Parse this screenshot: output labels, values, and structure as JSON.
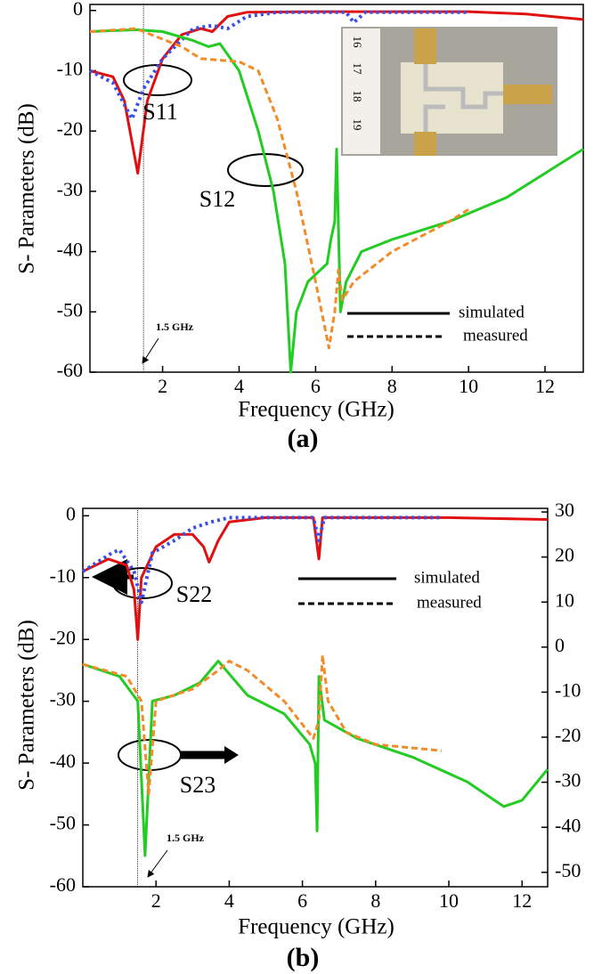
{
  "chart_data": [
    {
      "type": "line",
      "title": "(a)",
      "xlabel": "Frequency (GHz)",
      "ylabel": "S- Parameters (dB)",
      "xlim": [
        0.1,
        13
      ],
      "ylim": [
        -60,
        1
      ],
      "xticks": [
        2,
        4,
        6,
        8,
        10,
        12
      ],
      "yticks": [
        0,
        -10,
        -20,
        -30,
        -40,
        -50,
        -60
      ],
      "grid": false,
      "vline": {
        "value": 1.5,
        "label": "1.5 GHz"
      },
      "annotations": [
        "S11",
        "S12"
      ],
      "legend": [
        {
          "label": "simulated",
          "style": "solid"
        },
        {
          "label": "measured",
          "style": "dashed"
        }
      ],
      "inset_ruler_labels": [
        "16",
        "17",
        "18",
        "19"
      ],
      "series": [
        {
          "color": "#e01010",
          "style": "solid",
          "x": [
            0.1,
            0.7,
            1.0,
            1.35,
            1.6,
            2,
            2.5,
            3,
            3.3,
            3.7,
            4.2,
            6,
            10,
            11.5,
            13
          ],
          "values": [
            -10,
            -11,
            -15,
            -27,
            -15,
            -8,
            -4,
            -3,
            -3.5,
            -1,
            -0.3,
            -0.2,
            -0.2,
            -0.6,
            -1.5
          ]
        },
        {
          "color": "#3a4fe6",
          "style": "dotted",
          "x": [
            0.1,
            0.7,
            1.2,
            1.5,
            2,
            2.8,
            3.3,
            3.7,
            4.2,
            5,
            6.8,
            7.0,
            7.3,
            10
          ],
          "values": [
            -10,
            -12,
            -18,
            -13,
            -8,
            -3,
            -2.5,
            -3,
            -1,
            -0.3,
            -0.3,
            -2,
            -0.3,
            -0.3
          ]
        },
        {
          "color": "#22cc22",
          "style": "solid",
          "x": [
            0.1,
            1.3,
            2,
            2.8,
            3.2,
            3.5,
            4,
            4.5,
            4.9,
            5.2,
            5.35,
            5.5,
            5.8,
            6.3,
            6.4,
            6.5,
            6.55,
            6.65,
            6.8,
            7.2,
            8,
            9.5,
            11,
            12,
            13
          ],
          "values": [
            -3.5,
            -3.2,
            -3.5,
            -5,
            -6,
            -5.5,
            -10,
            -20,
            -30,
            -42,
            -60,
            -50,
            -45,
            -42,
            -38,
            -35,
            -23,
            -50,
            -45,
            -40,
            -38,
            -35,
            -31,
            -27,
            -23
          ]
        },
        {
          "color": "#f28c28",
          "style": "dashed",
          "x": [
            0.1,
            1.3,
            2.5,
            3,
            4,
            4.5,
            5,
            5.5,
            6,
            6.35,
            6.5,
            6.6,
            6.7,
            7,
            8,
            9.5,
            10
          ],
          "values": [
            -3.5,
            -3,
            -6,
            -8,
            -8.5,
            -10,
            -18,
            -30,
            -45,
            -56,
            -50,
            -43,
            -48,
            -45,
            -40,
            -35,
            -33
          ]
        }
      ]
    },
    {
      "type": "line",
      "title": "(b)",
      "xlabel": "Frequency (GHz)",
      "ylabel": "S- Parameters (dB)",
      "xlim": [
        0,
        12.7
      ],
      "ylim": [
        -60,
        1.2
      ],
      "y2lim": [
        -53.2,
        30.8
      ],
      "xticks": [
        2,
        4,
        6,
        8,
        10,
        12
      ],
      "yticks": [
        0,
        -10,
        -20,
        -30,
        -40,
        -50,
        -60
      ],
      "y2ticks": [
        30,
        20,
        10,
        0,
        -10,
        -20,
        -30,
        -40,
        -50
      ],
      "grid": false,
      "vline": {
        "value": 1.5,
        "label": "1.5 GHz"
      },
      "annotations": [
        "S22",
        "S23"
      ],
      "legend": [
        {
          "label": "simulated",
          "style": "solid"
        },
        {
          "label": "measured",
          "style": "dashed"
        }
      ],
      "series": [
        {
          "color": "#e01010",
          "style": "solid",
          "x": [
            0,
            0.7,
            1.2,
            1.4,
            1.5,
            1.6,
            2,
            2.5,
            3,
            3.3,
            3.45,
            3.7,
            4,
            5,
            6.3,
            6.45,
            6.55,
            10,
            12.7
          ],
          "values": [
            -9,
            -7,
            -8,
            -12,
            -20,
            -10,
            -5,
            -3,
            -3,
            -5,
            -7.5,
            -4,
            -1,
            -0.3,
            -0.3,
            -7,
            -0.3,
            -0.3,
            -0.6
          ]
        },
        {
          "color": "#3a4fe6",
          "style": "dotted",
          "x": [
            0,
            0.8,
            1.0,
            1.4,
            1.6,
            1.9,
            2.5,
            3,
            3.5,
            4,
            6.3,
            6.45,
            6.6,
            9.8
          ],
          "values": [
            -9,
            -6,
            -5.5,
            -9,
            -14,
            -6,
            -4,
            -2,
            -1,
            -0.3,
            -0.3,
            -4,
            -0.3,
            -0.3
          ]
        },
        {
          "color": "#22cc22",
          "style": "solid",
          "axis": "y2",
          "x": [
            0,
            1.0,
            1.5,
            1.7,
            1.9,
            2.5,
            3.2,
            3.7,
            4.5,
            5.5,
            6.2,
            6.35,
            6.4,
            6.45,
            6.6,
            7.5,
            9,
            10.5,
            11.5,
            12,
            12.7
          ],
          "values": [
            -3.8,
            -6.5,
            -12.0,
            -46.3,
            -12.0,
            -10.7,
            -7.9,
            -3.1,
            -10.7,
            -14.8,
            -21.6,
            -25.8,
            -40.8,
            -6.5,
            -16.2,
            -20.3,
            -24.4,
            -29.9,
            -35.4,
            -34,
            -27.1
          ]
        },
        {
          "color": "#f28c28",
          "style": "dashed",
          "axis": "y2",
          "x": [
            0,
            1.2,
            1.6,
            1.8,
            2.0,
            3,
            3.7,
            4,
            4.5,
            5.5,
            6.3,
            6.45,
            6.55,
            6.7,
            7.2,
            8,
            9.8
          ],
          "values": [
            -3.8,
            -6.5,
            -12.0,
            -32.6,
            -12.0,
            -9.3,
            -5.2,
            -3.1,
            -5.2,
            -12.0,
            -20.3,
            -16.2,
            -1.8,
            -12.0,
            -18.9,
            -21.6,
            -23.0
          ]
        }
      ]
    }
  ]
}
